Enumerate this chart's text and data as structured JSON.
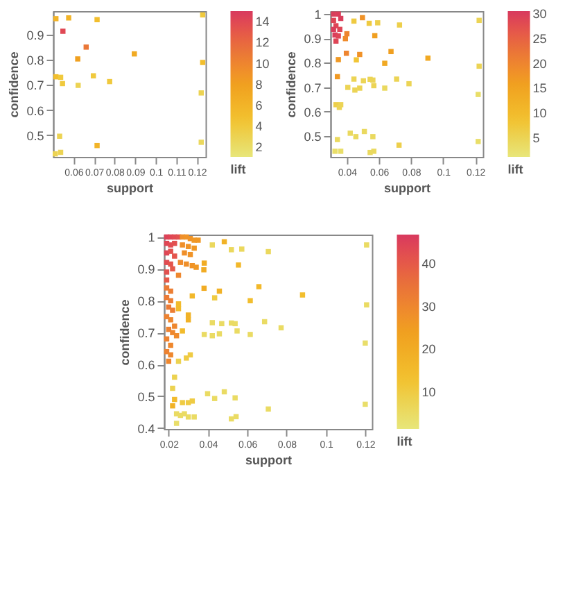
{
  "chart_data": [
    {
      "type": "scatter",
      "xlabel": "support",
      "ylabel": "confidence",
      "clabel": "lift",
      "marker": "square",
      "xlim": [
        0.0501,
        0.1242
      ],
      "ylim": [
        0.414,
        0.993
      ],
      "xticks": [
        0.06,
        0.07,
        0.08,
        0.09,
        0.1,
        0.11,
        0.12
      ],
      "yticks": [
        0.5,
        0.6,
        0.7,
        0.8,
        0.9
      ],
      "clim": [
        1.1,
        15
      ],
      "cticks": [
        2,
        4,
        6,
        8,
        10,
        12,
        14
      ],
      "x": [
        0.0515,
        0.0577,
        0.0549,
        0.0715,
        0.1228,
        0.0662,
        0.0621,
        0.0896,
        0.1228,
        0.0515,
        0.0538,
        0.0547,
        0.0623,
        0.0697,
        0.0776,
        0.1221,
        0.0533,
        0.0715,
        0.0512,
        0.0538,
        0.1221
      ],
      "values": [
        0.963,
        0.966,
        0.913,
        0.959,
        0.978,
        0.85,
        0.803,
        0.823,
        0.789,
        0.732,
        0.73,
        0.705,
        0.698,
        0.736,
        0.713,
        0.668,
        0.496,
        0.459,
        0.426,
        0.432,
        0.472
      ],
      "cvalues": [
        6,
        6,
        14,
        5,
        4,
        11,
        8,
        7,
        5,
        5,
        4,
        4,
        3,
        4,
        4,
        3,
        3,
        6,
        3,
        3,
        2.5
      ]
    },
    {
      "type": "scatter",
      "xlabel": "support",
      "ylabel": "confidence",
      "clabel": "lift",
      "marker": "square",
      "xlim": [
        0.0297,
        0.1247
      ],
      "ylim": [
        0.414,
        1.012
      ],
      "xticks": [
        0.04,
        0.06,
        0.08,
        0.1,
        0.12
      ],
      "yticks": [
        0.5,
        0.6,
        0.7,
        0.8,
        0.9,
        1
      ],
      "clim": [
        1.2,
        30.6
      ],
      "cticks": [
        5,
        10,
        15,
        20,
        25,
        30
      ],
      "x": [
        0.0317,
        0.0347,
        0.0317,
        0.0362,
        0.0332,
        0.0317,
        0.0356,
        0.0326,
        0.0347,
        0.0332,
        0.04,
        0.0391,
        0.0397,
        0.048,
        0.0497,
        0.0574,
        0.0675,
        0.0636,
        0.0905,
        0.0347,
        0.0341,
        0.0459,
        0.0444,
        0.0539,
        0.0592,
        0.0728,
        0.1224,
        0.1224,
        0.0444,
        0.0503,
        0.0545,
        0.0562,
        0.071,
        0.0787,
        0.0406,
        0.045,
        0.048,
        0.0568,
        0.0636,
        0.1218,
        0.0332,
        0.0362,
        0.0353,
        0.0421,
        0.0509,
        0.0456,
        0.0562,
        0.0341,
        0.0725,
        0.1218,
        0.0326,
        0.0362,
        0.0545,
        0.0568
      ],
      "values": [
        1.0,
        1.0,
        0.974,
        0.982,
        0.952,
        0.937,
        0.937,
        0.914,
        0.91,
        0.889,
        0.919,
        0.899,
        0.839,
        0.834,
        0.985,
        0.911,
        0.846,
        0.798,
        0.819,
        0.813,
        0.743,
        0.812,
        0.971,
        0.962,
        0.964,
        0.955,
        0.974,
        0.786,
        0.733,
        0.726,
        0.732,
        0.729,
        0.733,
        0.714,
        0.699,
        0.688,
        0.696,
        0.706,
        0.696,
        0.67,
        0.628,
        0.628,
        0.617,
        0.511,
        0.518,
        0.497,
        0.497,
        0.485,
        0.462,
        0.477,
        0.437,
        0.437,
        0.432,
        0.437
      ],
      "cvalues": [
        30,
        30,
        29,
        30,
        29,
        30,
        29,
        30,
        29,
        29,
        20,
        19,
        20,
        18,
        18,
        16,
        16,
        14,
        14,
        17,
        17,
        8,
        7,
        7,
        6,
        6,
        5,
        5,
        5,
        5,
        5,
        5,
        5,
        5,
        5,
        5,
        5,
        5,
        4,
        3,
        6,
        5,
        5,
        4,
        4,
        4,
        4,
        4,
        6,
        3,
        3,
        3,
        4,
        4
      ]
    },
    {
      "type": "scatter",
      "xlabel": "support",
      "ylabel": "confidence",
      "clabel": "lift",
      "marker": "square",
      "xlim": [
        0.0176,
        0.1234
      ],
      "ylim": [
        0.3975,
        1.0075
      ],
      "xticks": [
        0.02,
        0.04,
        0.06,
        0.08,
        0.1,
        0.12
      ],
      "yticks": [
        0.4,
        0.5,
        0.6,
        0.7,
        0.8,
        0.9,
        1
      ],
      "clim": [
        1.4,
        46.8
      ],
      "cticks": [
        10,
        20,
        30,
        40
      ],
      "x": [
        0.019,
        0.021,
        0.023,
        0.025,
        0.019,
        0.021,
        0.023,
        0.019,
        0.021,
        0.023,
        0.019,
        0.021,
        0.019,
        0.022,
        0.019,
        0.027,
        0.029,
        0.031,
        0.033,
        0.035,
        0.027,
        0.03,
        0.033,
        0.028,
        0.031,
        0.026,
        0.029,
        0.032,
        0.034,
        0.025,
        0.019,
        0.021,
        0.019,
        0.021,
        0.02,
        0.022,
        0.019,
        0.021,
        0.023,
        0.02,
        0.022,
        0.024,
        0.019,
        0.021,
        0.019,
        0.021,
        0.02,
        0.025,
        0.025,
        0.03,
        0.03,
        0.027,
        0.032,
        0.029,
        0.031,
        0.025,
        0.023,
        0.022,
        0.023,
        0.022,
        0.027,
        0.03,
        0.032,
        0.024,
        0.026,
        0.028,
        0.024,
        0.03,
        0.033,
        0.0381,
        0.0379,
        0.038,
        0.0458,
        0.0483,
        0.0555,
        0.0659,
        0.0615,
        0.0881,
        0.0434,
        0.0422,
        0.0519,
        0.0572,
        0.0707,
        0.1207,
        0.1207,
        0.0422,
        0.047,
        0.0519,
        0.0538,
        0.0688,
        0.0772,
        0.0381,
        0.0422,
        0.0458,
        0.0548,
        0.0615,
        0.12,
        0.0398,
        0.0483,
        0.0434,
        0.0538,
        0.0707,
        0.12,
        0.0519,
        0.0543
      ],
      "values": [
        1.0,
        1.0,
        1.0,
        1.0,
        0.98,
        0.975,
        0.98,
        0.95,
        0.955,
        0.94,
        0.92,
        0.915,
        0.89,
        0.9,
        0.865,
        1.0,
        1.0,
        0.995,
        0.99,
        0.99,
        0.975,
        0.97,
        0.965,
        0.95,
        0.945,
        0.92,
        0.915,
        0.91,
        0.905,
        0.88,
        0.84,
        0.83,
        0.81,
        0.8,
        0.78,
        0.77,
        0.75,
        0.74,
        0.72,
        0.71,
        0.7,
        0.69,
        0.68,
        0.66,
        0.64,
        0.63,
        0.61,
        0.79,
        0.775,
        0.755,
        0.74,
        0.705,
        0.815,
        0.62,
        0.63,
        0.61,
        0.56,
        0.525,
        0.49,
        0.47,
        0.48,
        0.48,
        0.485,
        0.445,
        0.44,
        0.445,
        0.415,
        0.435,
        0.435,
        0.918,
        0.897,
        0.839,
        0.83,
        0.985,
        0.912,
        0.844,
        0.8,
        0.818,
        0.809,
        0.975,
        0.96,
        0.962,
        0.954,
        0.975,
        0.787,
        0.731,
        0.728,
        0.73,
        0.728,
        0.734,
        0.715,
        0.694,
        0.69,
        0.696,
        0.705,
        0.694,
        0.667,
        0.508,
        0.514,
        0.493,
        0.495,
        0.46,
        0.475,
        0.429,
        0.436
      ],
      "cvalues": [
        45,
        44,
        43,
        42,
        44,
        43,
        42,
        44,
        42,
        41,
        43,
        41,
        42,
        40,
        40,
        28,
        27,
        27,
        26,
        26,
        28,
        27,
        26,
        28,
        27,
        29,
        28,
        27,
        26,
        30,
        33,
        32,
        33,
        32,
        33,
        32,
        31,
        30,
        30,
        31,
        30,
        29,
        31,
        30,
        31,
        30,
        30,
        15,
        15,
        18,
        18,
        15,
        16,
        10,
        10,
        8,
        8,
        8,
        15,
        18,
        10,
        10,
        10,
        5,
        5,
        5,
        4,
        5,
        5,
        20,
        20,
        20,
        18,
        18,
        16,
        16,
        14,
        14,
        10,
        6,
        6,
        6,
        6,
        5,
        5,
        5,
        5,
        5,
        5,
        5,
        5,
        5,
        5,
        5,
        5,
        5,
        4,
        5,
        5,
        5,
        5,
        5,
        4,
        5,
        5
      ]
    }
  ]
}
